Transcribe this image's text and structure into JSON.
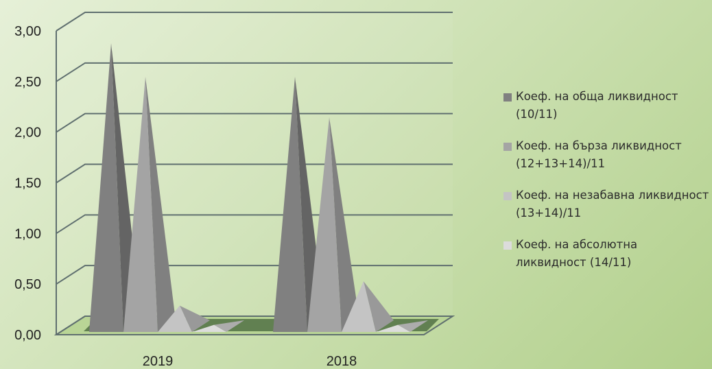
{
  "chart_data": {
    "type": "bar",
    "categories": [
      "2019",
      "2018"
    ],
    "series": [
      {
        "name": "Коеф. на обща ликвидност (10/11)",
        "values": [
          2.85,
          2.52
        ],
        "color": "#808080"
      },
      {
        "name": "Коеф. на бърза ликвидност (12+13+14)/11",
        "values": [
          2.52,
          2.12
        ],
        "color": "#a4a4a4"
      },
      {
        "name": "Коеф. на незабавна ликвидност (13+14)/11",
        "values": [
          0.26,
          0.5
        ],
        "color": "#c4c4c4"
      },
      {
        "name": "Коеф. на абсолютна ликвидност (14/11)",
        "values": [
          0.07,
          0.07
        ],
        "color": "#dcdcdc"
      }
    ],
    "yticks": [
      "0,00",
      "0,50",
      "1,00",
      "1,50",
      "2,00",
      "2,50",
      "3,00"
    ],
    "ylim": [
      0,
      3
    ],
    "grid": true,
    "legend_position": "right"
  }
}
